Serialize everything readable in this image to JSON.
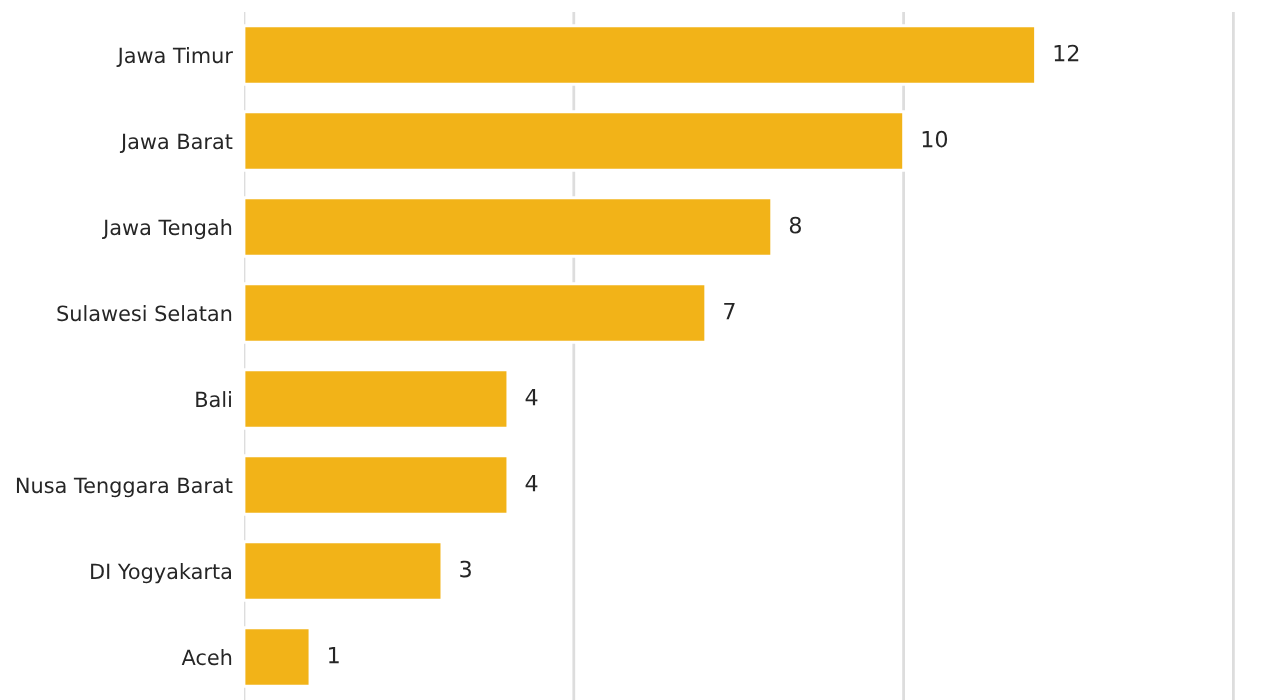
{
  "chart_data": {
    "type": "bar",
    "orientation": "horizontal",
    "categories": [
      "Jawa Timur",
      "Jawa Barat",
      "Jawa Tengah",
      "Sulawesi Selatan",
      "Bali",
      "Nusa Tenggara Barat",
      "DI Yogyakarta",
      "Aceh"
    ],
    "values": [
      12,
      10,
      8,
      7,
      4,
      4,
      3,
      1
    ],
    "color": "#f2b318",
    "xlim": [
      0,
      15.1
    ],
    "xticks": [
      {
        "value": 0,
        "label": null
      },
      {
        "value": 5,
        "label": null
      },
      {
        "value": 10,
        "label": null
      },
      {
        "value": 15,
        "label": null
      }
    ],
    "grid": "x",
    "data_labels": true,
    "tick_labels": "y"
  }
}
